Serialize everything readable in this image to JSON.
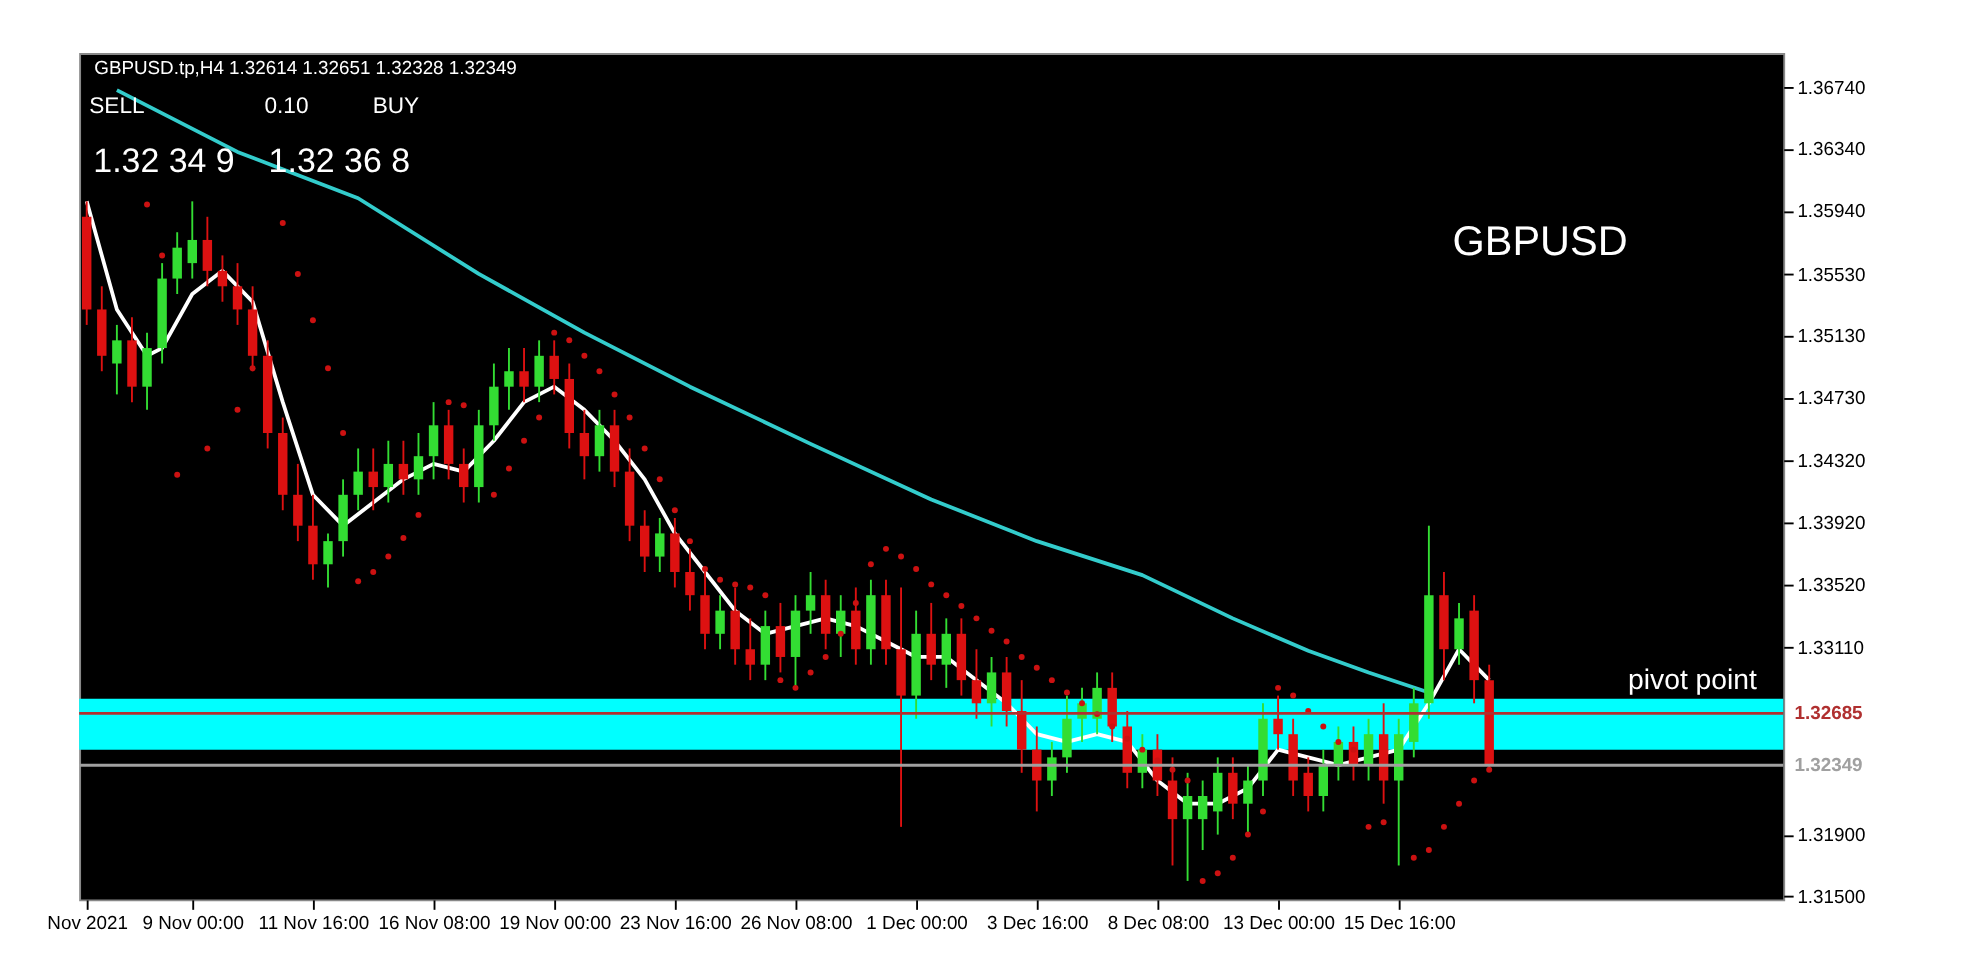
{
  "chart_data": {
    "type": "candlestick",
    "title": "GBPUSD.tp,H4  1.32614 1.32651 1.32328 1.32349",
    "categories": [
      "Nov 2021",
      null,
      null,
      null,
      null,
      null,
      null,
      "9 Nov 00:00",
      null,
      null,
      null,
      null,
      null,
      null,
      null,
      "11 Nov 16:00",
      null,
      null,
      null,
      null,
      null,
      null,
      null,
      "16 Nov 08:00",
      null,
      null,
      null,
      null,
      null,
      null,
      null,
      "19 Nov 00:00",
      null,
      null,
      null,
      null,
      null,
      null,
      null,
      "23 Nov 16:00",
      null,
      null,
      null,
      null,
      null,
      null,
      null,
      "26 Nov 08:00",
      null,
      null,
      null,
      null,
      null,
      null,
      null,
      "1 Dec 00:00",
      null,
      null,
      null,
      null,
      null,
      null,
      null,
      "3 Dec 16:00",
      null,
      null,
      null,
      null,
      null,
      null,
      null,
      "8 Dec 08:00",
      null,
      null,
      null,
      null,
      null,
      null,
      null,
      "13 Dec 00:00",
      null,
      null,
      null,
      null,
      null,
      null,
      null,
      "15 Dec 16:00",
      null,
      null,
      null,
      null,
      null,
      null
    ],
    "ohlc": [
      [
        1.359,
        1.36,
        1.352,
        1.353
      ],
      [
        1.353,
        1.3545,
        1.349,
        1.35
      ],
      [
        1.3495,
        1.352,
        1.3475,
        1.351
      ],
      [
        1.351,
        1.3525,
        1.347,
        1.348
      ],
      [
        1.348,
        1.3515,
        1.3465,
        1.3505
      ],
      [
        1.3505,
        1.356,
        1.3495,
        1.355
      ],
      [
        1.355,
        1.358,
        1.354,
        1.357
      ],
      [
        1.356,
        1.36,
        1.355,
        1.3575
      ],
      [
        1.3575,
        1.359,
        1.3545,
        1.3555
      ],
      [
        1.3555,
        1.3565,
        1.3535,
        1.3545
      ],
      [
        1.3545,
        1.356,
        1.352,
        1.353
      ],
      [
        1.353,
        1.3545,
        1.349,
        1.35
      ],
      [
        1.35,
        1.351,
        1.344,
        1.345
      ],
      [
        1.345,
        1.346,
        1.34,
        1.341
      ],
      [
        1.341,
        1.343,
        1.338,
        1.339
      ],
      [
        1.339,
        1.341,
        1.3355,
        1.3365
      ],
      [
        1.3365,
        1.3385,
        1.335,
        1.338
      ],
      [
        1.338,
        1.342,
        1.337,
        1.341
      ],
      [
        1.341,
        1.344,
        1.34,
        1.3425
      ],
      [
        1.3425,
        1.344,
        1.34,
        1.3415
      ],
      [
        1.3415,
        1.3445,
        1.3405,
        1.343
      ],
      [
        1.343,
        1.3445,
        1.341,
        1.342
      ],
      [
        1.342,
        1.345,
        1.341,
        1.3435
      ],
      [
        1.3435,
        1.347,
        1.342,
        1.3455
      ],
      [
        1.3455,
        1.3465,
        1.342,
        1.343
      ],
      [
        1.343,
        1.344,
        1.3405,
        1.3415
      ],
      [
        1.3415,
        1.3465,
        1.3405,
        1.3455
      ],
      [
        1.3455,
        1.3495,
        1.3445,
        1.348
      ],
      [
        1.348,
        1.3505,
        1.3465,
        1.349
      ],
      [
        1.349,
        1.3505,
        1.347,
        1.348
      ],
      [
        1.348,
        1.351,
        1.347,
        1.35
      ],
      [
        1.35,
        1.351,
        1.3475,
        1.3485
      ],
      [
        1.3485,
        1.3495,
        1.344,
        1.345
      ],
      [
        1.345,
        1.3465,
        1.342,
        1.3435
      ],
      [
        1.3435,
        1.3465,
        1.3425,
        1.3455
      ],
      [
        1.3455,
        1.3465,
        1.3415,
        1.3425
      ],
      [
        1.3425,
        1.344,
        1.338,
        1.339
      ],
      [
        1.339,
        1.34,
        1.336,
        1.337
      ],
      [
        1.337,
        1.3395,
        1.336,
        1.3385
      ],
      [
        1.3385,
        1.3395,
        1.335,
        1.336
      ],
      [
        1.336,
        1.3375,
        1.3335,
        1.3345
      ],
      [
        1.3345,
        1.336,
        1.331,
        1.332
      ],
      [
        1.332,
        1.3345,
        1.331,
        1.3335
      ],
      [
        1.3335,
        1.335,
        1.33,
        1.331
      ],
      [
        1.331,
        1.333,
        1.329,
        1.33
      ],
      [
        1.33,
        1.3335,
        1.329,
        1.3325
      ],
      [
        1.3325,
        1.334,
        1.3295,
        1.3305
      ],
      [
        1.3305,
        1.3345,
        1.3285,
        1.3335
      ],
      [
        1.3335,
        1.336,
        1.332,
        1.3345
      ],
      [
        1.3345,
        1.3355,
        1.331,
        1.332
      ],
      [
        1.332,
        1.3345,
        1.3305,
        1.3335
      ],
      [
        1.3335,
        1.335,
        1.33,
        1.331
      ],
      [
        1.331,
        1.3355,
        1.33,
        1.3345
      ],
      [
        1.3345,
        1.3355,
        1.33,
        1.331
      ],
      [
        1.331,
        1.335,
        1.3195,
        1.328
      ],
      [
        1.328,
        1.3335,
        1.3265,
        1.332
      ],
      [
        1.332,
        1.334,
        1.329,
        1.33
      ],
      [
        1.33,
        1.333,
        1.3285,
        1.332
      ],
      [
        1.332,
        1.333,
        1.328,
        1.329
      ],
      [
        1.329,
        1.331,
        1.3265,
        1.3275
      ],
      [
        1.3275,
        1.3305,
        1.326,
        1.3295
      ],
      [
        1.3295,
        1.3305,
        1.326,
        1.327
      ],
      [
        1.327,
        1.329,
        1.323,
        1.3245
      ],
      [
        1.3245,
        1.326,
        1.3205,
        1.3225
      ],
      [
        1.3225,
        1.325,
        1.3215,
        1.324
      ],
      [
        1.324,
        1.328,
        1.323,
        1.3265
      ],
      [
        1.3265,
        1.3285,
        1.325,
        1.3275
      ],
      [
        1.3265,
        1.3295,
        1.3255,
        1.3285
      ],
      [
        1.3285,
        1.3295,
        1.325,
        1.326
      ],
      [
        1.326,
        1.327,
        1.322,
        1.323
      ],
      [
        1.323,
        1.3255,
        1.322,
        1.3245
      ],
      [
        1.3245,
        1.3255,
        1.3215,
        1.3225
      ],
      [
        1.3225,
        1.324,
        1.317,
        1.32
      ],
      [
        1.32,
        1.323,
        1.316,
        1.3215
      ],
      [
        1.32,
        1.3225,
        1.318,
        1.3215
      ],
      [
        1.3205,
        1.324,
        1.319,
        1.323
      ],
      [
        1.323,
        1.324,
        1.32,
        1.321
      ],
      [
        1.321,
        1.3235,
        1.319,
        1.3225
      ],
      [
        1.3225,
        1.3275,
        1.3215,
        1.3265
      ],
      [
        1.3265,
        1.328,
        1.3245,
        1.3255
      ],
      [
        1.3255,
        1.3265,
        1.3215,
        1.3225
      ],
      [
        1.323,
        1.324,
        1.3205,
        1.3215
      ],
      [
        1.3215,
        1.3245,
        1.3205,
        1.3235
      ],
      [
        1.3235,
        1.326,
        1.3225,
        1.325
      ],
      [
        1.325,
        1.326,
        1.3225,
        1.3235
      ],
      [
        1.3235,
        1.3265,
        1.3225,
        1.3255
      ],
      [
        1.3255,
        1.3275,
        1.321,
        1.3225
      ],
      [
        1.3225,
        1.3265,
        1.317,
        1.3255
      ],
      [
        1.325,
        1.3285,
        1.324,
        1.3275
      ],
      [
        1.3275,
        1.339,
        1.3265,
        1.3345
      ],
      [
        1.3345,
        1.336,
        1.329,
        1.331
      ],
      [
        1.331,
        1.334,
        1.33,
        1.333
      ],
      [
        1.3335,
        1.3345,
        1.3275,
        1.329
      ],
      [
        1.329,
        1.33,
        1.3233,
        1.3235
      ]
    ],
    "colors": [
      "#dd1111",
      "#dd1111",
      "#33dd33",
      "#dd1111",
      "#33dd33",
      "#33dd33",
      "#33dd33",
      "#33dd33",
      "#dd1111",
      "#dd1111",
      "#dd1111",
      "#dd1111",
      "#dd1111",
      "#dd1111",
      "#dd1111",
      "#dd1111",
      "#33dd33",
      "#33dd33",
      "#33dd33",
      "#dd1111",
      "#33dd33",
      "#dd1111",
      "#33dd33",
      "#33dd33",
      "#dd1111",
      "#dd1111",
      "#33dd33",
      "#33dd33",
      "#33dd33",
      "#dd1111",
      "#33dd33",
      "#dd1111",
      "#dd1111",
      "#dd1111",
      "#33dd33",
      "#dd1111",
      "#dd1111",
      "#dd1111",
      "#33dd33",
      "#dd1111",
      "#dd1111",
      "#dd1111",
      "#33dd33",
      "#dd1111",
      "#dd1111",
      "#33dd33",
      "#dd1111",
      "#33dd33",
      "#33dd33",
      "#dd1111",
      "#33dd33",
      "#dd1111",
      "#33dd33",
      "#dd1111",
      "#dd1111",
      "#33dd33",
      "#dd1111",
      "#33dd33",
      "#dd1111",
      "#dd1111",
      "#33dd33",
      "#dd1111",
      "#dd1111",
      "#dd1111",
      "#33dd33",
      "#33dd33",
      "#33dd33",
      "#33dd33",
      "#dd1111",
      "#dd1111",
      "#33dd33",
      "#dd1111",
      "#dd1111",
      "#33dd33",
      "#33dd33",
      "#33dd33",
      "#dd1111",
      "#33dd33",
      "#33dd33",
      "#dd1111",
      "#dd1111",
      "#dd1111",
      "#33dd33",
      "#33dd33",
      "#dd1111",
      "#33dd33",
      "#dd1111",
      "#33dd33",
      "#33dd33",
      "#33dd33",
      "#dd1111",
      "#33dd33",
      "#dd1111",
      "#dd1111"
    ],
    "series": [
      {
        "type": "line",
        "color": "#ffffff",
        "values": [
          1.36,
          null,
          1.353,
          null,
          1.35,
          1.3505,
          null,
          1.354,
          null,
          1.3555,
          null,
          1.3535,
          null,
          1.347,
          null,
          1.341,
          null,
          1.339,
          null,
          1.3405,
          null,
          1.342,
          null,
          1.343,
          null,
          1.3425,
          null,
          1.3445,
          null,
          1.347,
          null,
          1.348,
          null,
          1.3465,
          null,
          1.3445,
          null,
          1.342,
          null,
          1.3385,
          null,
          1.336,
          null,
          1.3335,
          null,
          1.332,
          null,
          1.3325,
          null,
          1.333,
          null,
          1.3325,
          null,
          1.3315,
          null,
          1.3305,
          null,
          1.3305,
          null,
          1.329,
          null,
          1.3275,
          null,
          1.3255,
          null,
          1.325,
          null,
          1.3255,
          null,
          1.325,
          null,
          1.3225,
          null,
          1.321,
          null,
          1.321,
          null,
          1.322,
          null,
          1.3245,
          null,
          1.324,
          null,
          1.3235,
          null,
          1.324,
          null,
          1.3245,
          null,
          1.3275,
          null,
          1.331,
          null,
          1.329
        ]
      },
      {
        "type": "line",
        "color": "#33cccc",
        "values": [
          null,
          null,
          1.3672,
          null,
          null,
          null,
          null,
          null,
          null,
          null,
          1.3632,
          null,
          null,
          null,
          null,
          null,
          null,
          null,
          1.3602,
          null,
          null,
          null,
          null,
          null,
          null,
          null,
          1.3553,
          null,
          null,
          null,
          null,
          null,
          null,
          1.3515,
          null,
          null,
          null,
          null,
          null,
          null,
          1.348,
          null,
          null,
          null,
          null,
          null,
          null,
          null,
          1.3443,
          null,
          null,
          null,
          null,
          null,
          null,
          null,
          1.3407,
          null,
          null,
          null,
          null,
          null,
          null,
          1.338,
          null,
          null,
          null,
          null,
          null,
          null,
          1.3358,
          null,
          null,
          null,
          null,
          null,
          1.333,
          null,
          null,
          null,
          null,
          1.3309,
          null,
          null,
          null,
          1.3295,
          null,
          null,
          null,
          1.3282,
          null,
          null,
          null,
          null
        ]
      },
      {
        "type": "scatter",
        "color": "#cc1111",
        "marker": "circle",
        "values": [
          null,
          null,
          null,
          null,
          1.3598,
          1.3565,
          1.3423,
          null,
          1.344,
          null,
          1.3465,
          1.3492,
          null,
          1.3586,
          1.3553,
          1.3523,
          1.3492,
          1.345,
          1.3354,
          1.336,
          1.337,
          1.3382,
          1.3397,
          null,
          1.347,
          1.3468,
          null,
          1.341,
          1.3427,
          1.3445,
          1.346,
          1.3515,
          1.351,
          1.35,
          1.349,
          1.3475,
          1.346,
          1.344,
          1.342,
          1.34,
          1.338,
          1.3362,
          1.3355,
          1.3352,
          1.335,
          1.3345,
          1.329,
          1.3285,
          1.3295,
          1.3305,
          1.332,
          1.334,
          1.3365,
          1.3375,
          1.337,
          1.3362,
          1.3352,
          1.3345,
          1.3338,
          1.333,
          1.3322,
          1.3315,
          1.3305,
          1.3298,
          1.329,
          1.3282,
          1.3275,
          1.3268,
          1.326,
          1.3252,
          1.3245,
          1.3238,
          1.3232,
          1.3225,
          1.316,
          1.3165,
          1.3175,
          1.319,
          1.3205,
          1.3285,
          1.328,
          1.327,
          1.326,
          1.325,
          1.3245,
          1.3195,
          1.3198,
          null,
          1.3175,
          1.318,
          1.3195,
          1.321,
          1.3225,
          1.3232
        ]
      }
    ],
    "ylim": [
      1.3148,
      1.3696
    ],
    "yticks": [
      {
        "value": 1.315,
        "label": "1.31500"
      },
      {
        "value": 1.319,
        "label": "1.31900"
      },
      {
        "value": 1.3311,
        "label": "1.33110"
      },
      {
        "value": 1.3352,
        "label": "1.33520"
      },
      {
        "value": 1.3392,
        "label": "1.33920"
      },
      {
        "value": 1.3432,
        "label": "1.34320"
      },
      {
        "value": 1.3473,
        "label": "1.34730"
      },
      {
        "value": 1.3513,
        "label": "1.35130"
      },
      {
        "value": 1.3553,
        "label": "1.35530"
      },
      {
        "value": 1.3594,
        "label": "1.35940"
      },
      {
        "value": 1.3634,
        "label": "1.36340"
      },
      {
        "value": 1.3674,
        "label": "1.36740"
      }
    ],
    "ref_lines": [
      {
        "axis": "y",
        "value": 1.32685,
        "label": "1.32685",
        "color": "#b03030"
      },
      {
        "axis": "y",
        "value": 1.32349,
        "label": "1.32349",
        "color": "#a0a0a0"
      }
    ],
    "bands": [
      {
        "axis": "y",
        "from": 1.3245,
        "to": 1.3278,
        "label": "pivot point",
        "color": "#00ffff"
      }
    ],
    "annotations": [
      "GBPUSD",
      "SELL",
      "0.10",
      "BUY",
      "1.32 34 9",
      "1.32 36 8"
    ]
  }
}
